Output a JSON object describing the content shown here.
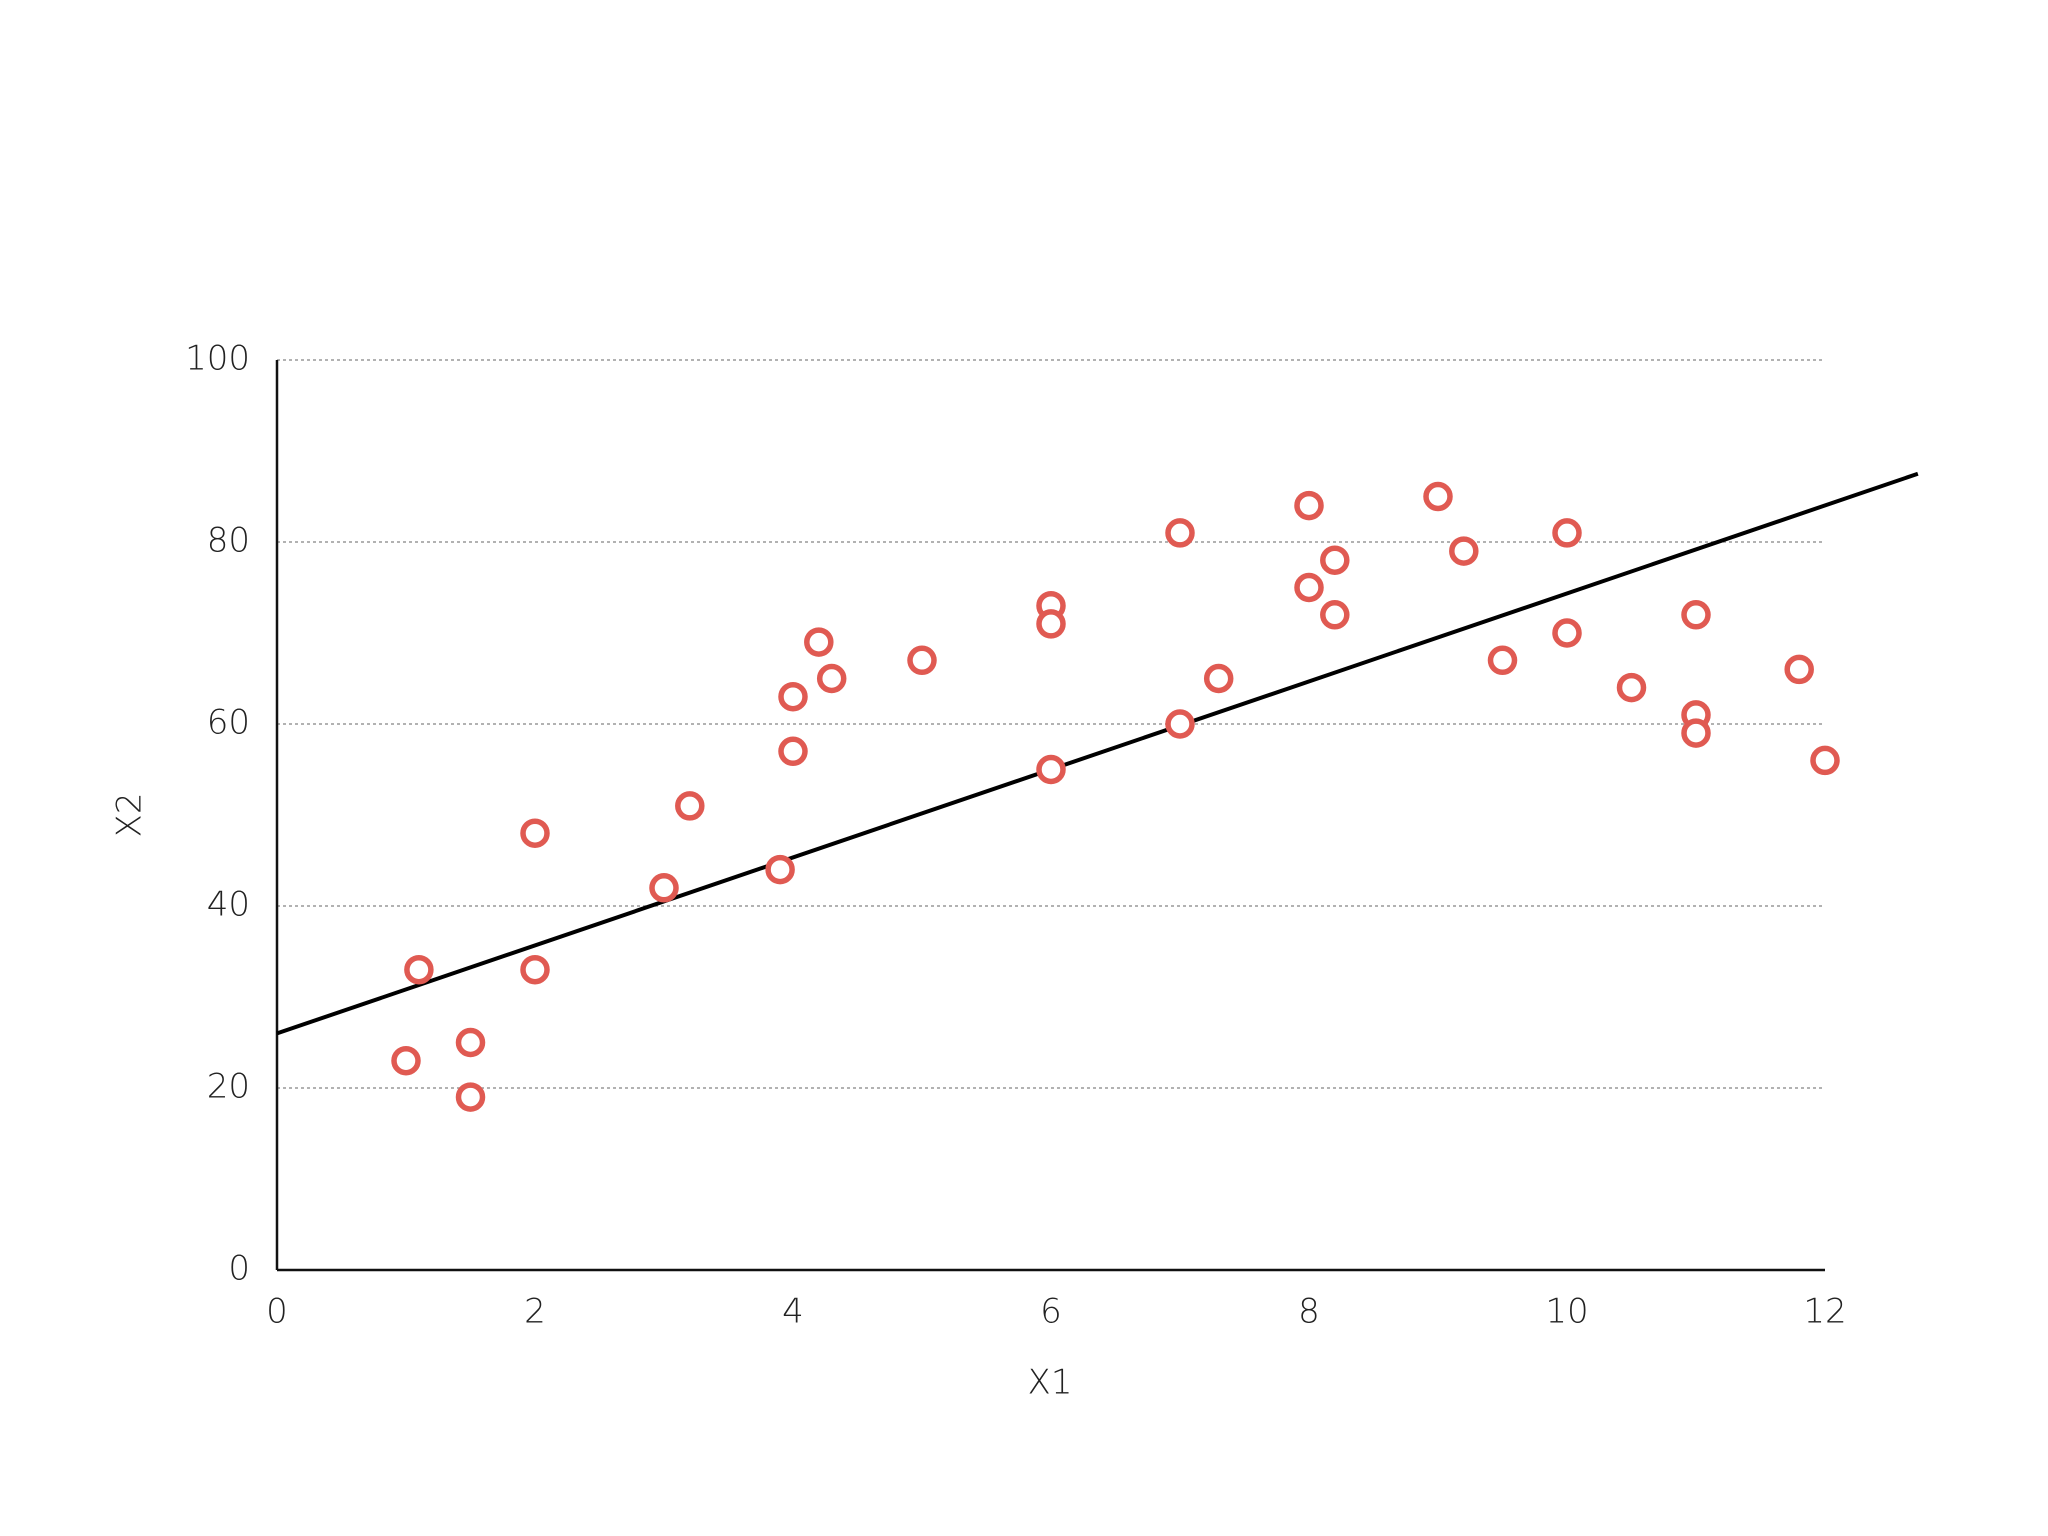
{
  "chart_data": {
    "type": "scatter",
    "xlabel": "X1",
    "ylabel": "X2",
    "xlim": [
      0,
      12
    ],
    "ylim": [
      0,
      100
    ],
    "xticks": [
      0,
      2,
      4,
      6,
      8,
      10,
      12
    ],
    "yticks": [
      0,
      20,
      40,
      60,
      80,
      100
    ],
    "grid": true,
    "points": {
      "color": "#e05a52",
      "x": [
        1,
        1.1,
        1.5,
        1.5,
        2,
        2,
        3,
        3.2,
        3.9,
        4,
        4,
        4.2,
        4.3,
        5,
        6,
        6,
        6,
        7,
        7,
        7.3,
        8,
        8,
        8.2,
        8.2,
        9,
        9.2,
        9.5,
        10,
        10,
        10.5,
        11,
        11,
        11,
        11.8,
        12
      ],
      "values": [
        23,
        33,
        25,
        19,
        48,
        33,
        42,
        51,
        44,
        63,
        57,
        69,
        65,
        67,
        73,
        71,
        55,
        81,
        60,
        65,
        84,
        75,
        78,
        72,
        85,
        79,
        67,
        81,
        70,
        64,
        72,
        61,
        59,
        66,
        56
      ]
    },
    "trend_line": {
      "color": "#000000",
      "x": [
        0,
        12.72
      ],
      "values": [
        26,
        87.5
      ]
    }
  }
}
